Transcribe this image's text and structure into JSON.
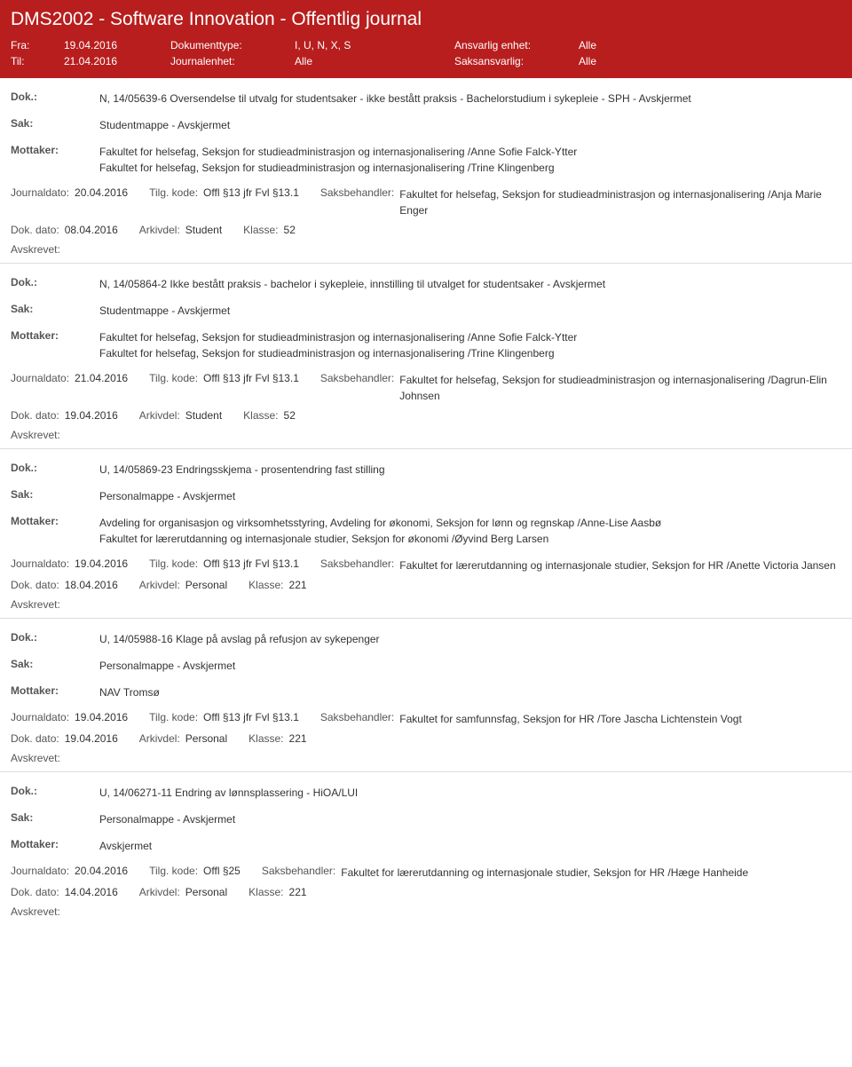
{
  "header": {
    "title": "DMS2002 - Software Innovation - Offentlig journal",
    "fra_label": "Fra:",
    "fra": "19.04.2016",
    "til_label": "Til:",
    "til": "21.04.2016",
    "doktype_label": "Dokumenttype:",
    "doktype": "I, U, N, X, S",
    "journalenhet_label": "Journalenhet:",
    "journalenhet": "Alle",
    "ansvarlig_label": "Ansvarlig enhet:",
    "ansvarlig": "Alle",
    "saksansvarlig_label": "Saksansvarlig:",
    "saksansvarlig": "Alle"
  },
  "labels": {
    "dok": "Dok.:",
    "sak": "Sak:",
    "mottaker": "Mottaker:",
    "journaldato": "Journaldato:",
    "tilgkode": "Tilg. kode:",
    "saksbehandler": "Saksbehandler:",
    "dokdato": "Dok. dato:",
    "arkivdel": "Arkivdel:",
    "klasse": "Klasse:",
    "avskrevet": "Avskrevet:"
  },
  "entries": [
    {
      "dok": "N, 14/05639-6 Oversendelse til utvalg for studentsaker - ikke bestått praksis - Bachelorstudium i sykepleie - SPH - Avskjermet",
      "sak": "Studentmappe - Avskjermet",
      "mottaker": "Fakultet for helsefag, Seksjon for studieadministrasjon og internasjonalisering /Anne Sofie Falck-Ytter\nFakultet for helsefag, Seksjon for studieadministrasjon og internasjonalisering /Trine Klingenberg",
      "journaldato": "20.04.2016",
      "tilgkode": "Offl §13 jfr Fvl §13.1",
      "saksbehandler": "Fakultet for helsefag, Seksjon for studieadministrasjon og internasjonalisering /Anja Marie Enger",
      "dokdato": "08.04.2016",
      "arkivdel": "Student",
      "klasse": "52"
    },
    {
      "dok": "N, 14/05864-2 Ikke bestått praksis - bachelor i sykepleie, innstilling til utvalget for studentsaker - Avskjermet",
      "sak": "Studentmappe - Avskjermet",
      "mottaker": "Fakultet for helsefag, Seksjon for studieadministrasjon og internasjonalisering /Anne Sofie Falck-Ytter\nFakultet for helsefag, Seksjon for studieadministrasjon og internasjonalisering /Trine Klingenberg",
      "journaldato": "21.04.2016",
      "tilgkode": "Offl §13 jfr Fvl §13.1",
      "saksbehandler": "Fakultet for helsefag, Seksjon for studieadministrasjon og internasjonalisering /Dagrun-Elin Johnsen",
      "dokdato": "19.04.2016",
      "arkivdel": "Student",
      "klasse": "52"
    },
    {
      "dok": "U, 14/05869-23 Endringsskjema - prosentendring fast stilling",
      "sak": "Personalmappe - Avskjermet",
      "mottaker": "Avdeling for organisasjon og virksomhetsstyring, Avdeling for økonomi, Seksjon for lønn og regnskap /Anne-Lise Aasbø\nFakultet for lærerutdanning og internasjonale studier, Seksjon for økonomi /Øyvind Berg Larsen",
      "journaldato": "19.04.2016",
      "tilgkode": "Offl §13 jfr Fvl §13.1",
      "saksbehandler": "Fakultet for lærerutdanning og internasjonale studier, Seksjon for HR /Anette Victoria Jansen",
      "dokdato": "18.04.2016",
      "arkivdel": "Personal",
      "klasse": "221"
    },
    {
      "dok": "U, 14/05988-16 Klage på avslag på refusjon av sykepenger",
      "sak": "Personalmappe - Avskjermet",
      "mottaker": "NAV Tromsø",
      "journaldato": "19.04.2016",
      "tilgkode": "Offl §13 jfr Fvl §13.1",
      "saksbehandler": "Fakultet for samfunnsfag, Seksjon for HR /Tore Jascha Lichtenstein Vogt",
      "dokdato": "19.04.2016",
      "arkivdel": "Personal",
      "klasse": "221"
    },
    {
      "dok": "U, 14/06271-11 Endring av lønnsplassering - HiOA/LUI",
      "sak": "Personalmappe - Avskjermet",
      "mottaker": "Avskjermet",
      "journaldato": "20.04.2016",
      "tilgkode": "Offl §25",
      "saksbehandler": "Fakultet for lærerutdanning og internasjonale studier, Seksjon for HR /Hæge Hanheide",
      "dokdato": "14.04.2016",
      "arkivdel": "Personal",
      "klasse": "221"
    }
  ]
}
